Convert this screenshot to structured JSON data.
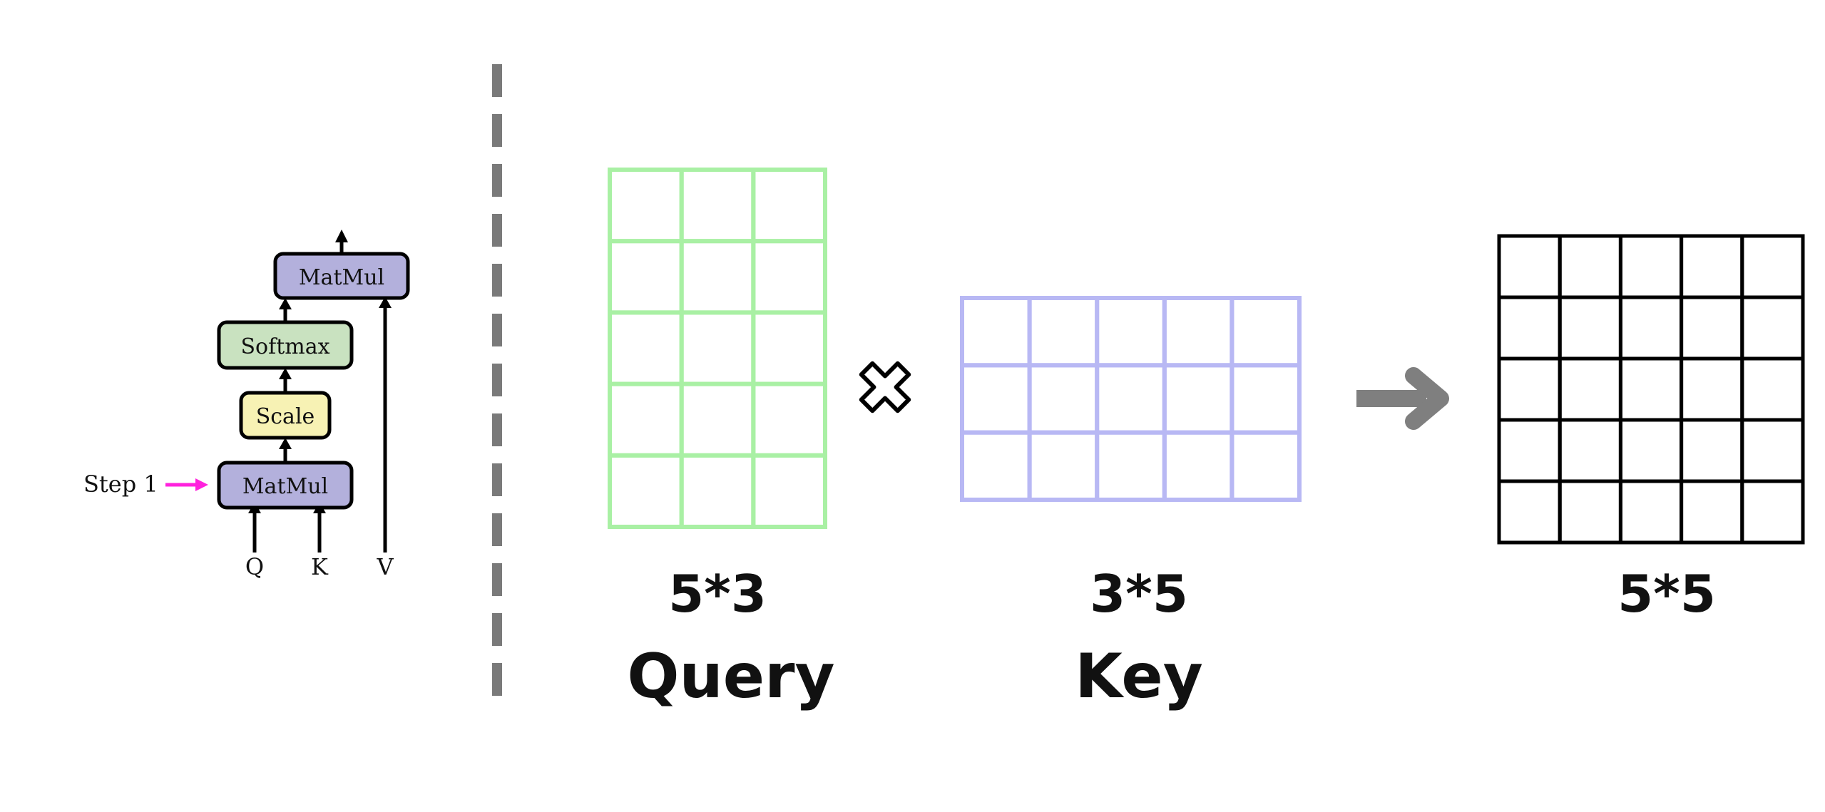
{
  "flow_diagram": {
    "step_label": "Step 1",
    "blocks": {
      "matmul_top": "MatMul",
      "softmax": "Softmax",
      "scale": "Scale",
      "matmul_bottom": "MatMul"
    },
    "inputs": [
      "Q",
      "K",
      "V"
    ],
    "colors": {
      "matmul": "#b3b0dc",
      "softmax": "#c9e2c0",
      "scale": "#f7f2b4",
      "step_arrow": "#ff22dd"
    }
  },
  "matrices": [
    {
      "name": "Query",
      "dims": "5*3",
      "rows": 5,
      "cols": 3,
      "color": "#a9f0a4"
    },
    {
      "name": "Key",
      "dims": "3*5",
      "rows": 3,
      "cols": 5,
      "color": "#b8b8f4"
    },
    {
      "name": "",
      "dims": "5*5",
      "rows": 5,
      "cols": 5,
      "color": "#000000"
    }
  ],
  "operators": {
    "multiply_icon": "multiply-icon",
    "result_arrow_icon": "arrow-right-icon",
    "arrow_color": "#7f7f7f"
  }
}
